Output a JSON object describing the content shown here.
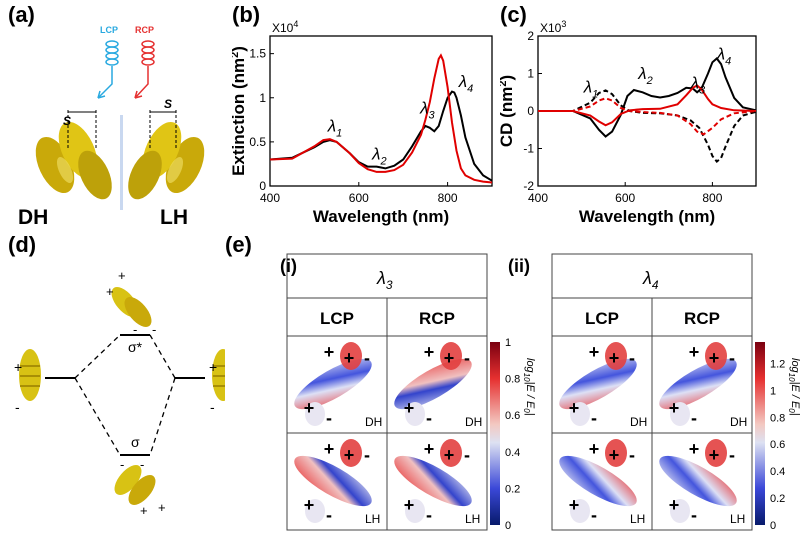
{
  "panel_labels": {
    "a": "(a)",
    "b": "(b)",
    "c": "(c)",
    "d": "(d)",
    "e": "(e)",
    "e_i": "(i)",
    "e_ii": "(ii)"
  },
  "panel_a": {
    "lcp": "LCP",
    "rcp": "RCP",
    "s": "S",
    "dh": "DH",
    "lh": "LH",
    "lcp_color": "#29a9e0",
    "rcp_color": "#e53030",
    "gold": "#d8c214"
  },
  "panel_b": {
    "multiplier": "X10",
    "multiplier_exp": "4"
  },
  "panel_c": {
    "multiplier": "X10",
    "multiplier_exp": "3"
  },
  "panel_d": {
    "sigma_star": "σ*",
    "sigma": "σ",
    "plus": "+",
    "minus": "-"
  },
  "panel_e": {
    "groups": [
      {
        "lambda": "λ",
        "sub": "3",
        "headers": [
          "LCP",
          "RCP"
        ]
      },
      {
        "lambda": "λ",
        "sub": "4",
        "headers": [
          "LCP",
          "RCP"
        ]
      }
    ],
    "dh": "DH",
    "lh": "LH",
    "colorbar_label_prefix": "log",
    "colorbar_label_sub": "10",
    "colorbar_label_rest": "|E / E",
    "colorbar_label_sub0": "0",
    "colorbar_label_end": "|",
    "cb1_ticks": [
      "1",
      "0.8",
      "0.6",
      "0.4",
      "0.2",
      "0"
    ],
    "cb2_ticks": [
      "1.2",
      "1",
      "0.8",
      "0.6",
      "0.4",
      "0.2",
      "0"
    ]
  },
  "chart_data": [
    {
      "type": "line",
      "xlabel": "Wavelength (nm)",
      "ylabel": "Extinction (nm²)",
      "ylabel_text": "Extinction (nm",
      "ylabel_sup": "2",
      "ylabel_end": ")",
      "xlim": [
        400,
        900
      ],
      "ylim": [
        0,
        1.7
      ],
      "xticks": [
        "400",
        "600",
        "800"
      ],
      "yticks": [
        "0",
        "0.5",
        "1",
        "1.5"
      ],
      "annotations": [
        {
          "text": "λ",
          "sub": "1",
          "x": 530,
          "y": 0.62
        },
        {
          "text": "λ",
          "sub": "2",
          "x": 630,
          "y": 0.3
        },
        {
          "text": "λ",
          "sub": "3",
          "x": 738,
          "y": 0.82
        },
        {
          "text": "λ",
          "sub": "4",
          "x": 825,
          "y": 1.12
        }
      ],
      "series": [
        {
          "color": "#000000",
          "x": [
            400,
            450,
            500,
            520,
            535,
            550,
            580,
            600,
            620,
            640,
            660,
            680,
            700,
            720,
            740,
            750,
            760,
            770,
            780,
            790,
            800,
            810,
            815,
            820,
            830,
            840,
            860,
            880,
            900
          ],
          "values": [
            0.3,
            0.32,
            0.44,
            0.5,
            0.52,
            0.5,
            0.37,
            0.27,
            0.22,
            0.22,
            0.2,
            0.23,
            0.3,
            0.45,
            0.62,
            0.68,
            0.66,
            0.62,
            0.68,
            0.85,
            1.0,
            1.07,
            1.06,
            1.0,
            0.8,
            0.55,
            0.25,
            0.12,
            0.06
          ]
        },
        {
          "color": "#e00000",
          "x": [
            400,
            450,
            500,
            520,
            535,
            550,
            580,
            600,
            620,
            640,
            660,
            680,
            700,
            720,
            740,
            750,
            760,
            770,
            780,
            785,
            790,
            800,
            810,
            820,
            830,
            840,
            860,
            880,
            900
          ],
          "values": [
            0.3,
            0.31,
            0.45,
            0.52,
            0.53,
            0.5,
            0.37,
            0.26,
            0.19,
            0.16,
            0.16,
            0.18,
            0.24,
            0.38,
            0.58,
            0.75,
            0.95,
            1.22,
            1.44,
            1.48,
            1.42,
            1.12,
            0.72,
            0.4,
            0.2,
            0.12,
            0.07,
            0.05,
            0.04
          ]
        }
      ]
    },
    {
      "type": "line",
      "xlabel": "Wavelength (nm)",
      "ylabel": "CD (nm²)",
      "ylabel_text": "CD (nm",
      "ylabel_sup": "2",
      "ylabel_end": ")",
      "xlim": [
        400,
        900
      ],
      "ylim": [
        -2,
        2
      ],
      "xticks": [
        "400",
        "600",
        "800"
      ],
      "yticks": [
        "-2",
        "-1",
        "0",
        "1",
        "2"
      ],
      "annotations": [
        {
          "text": "λ",
          "sub": "1",
          "x": 505,
          "y": 0.5
        },
        {
          "text": "λ",
          "sub": "2",
          "x": 630,
          "y": 0.85
        },
        {
          "text": "λ",
          "sub": "3",
          "x": 750,
          "y": 0.6
        },
        {
          "text": "λ",
          "sub": "4",
          "x": 810,
          "y": 1.38
        }
      ],
      "series": [
        {
          "color": "#000000",
          "dash": false,
          "x": [
            400,
            480,
            520,
            540,
            555,
            570,
            590,
            605,
            620,
            640,
            660,
            680,
            700,
            720,
            740,
            755,
            765,
            775,
            790,
            800,
            810,
            820,
            830,
            850,
            870,
            900
          ],
          "values": [
            0,
            0,
            -0.2,
            -0.5,
            -0.68,
            -0.55,
            -0.1,
            0.4,
            0.56,
            0.5,
            0.4,
            0.36,
            0.4,
            0.48,
            0.62,
            0.6,
            0.5,
            0.6,
            1.0,
            1.3,
            1.4,
            1.25,
            0.9,
            0.35,
            0.1,
            0.02
          ]
        },
        {
          "color": "#e00000",
          "dash": false,
          "x": [
            400,
            480,
            520,
            540,
            555,
            570,
            590,
            610,
            640,
            680,
            720,
            740,
            755,
            765,
            775,
            790,
            800,
            820,
            850,
            900
          ],
          "values": [
            0,
            0,
            -0.12,
            -0.28,
            -0.38,
            -0.3,
            -0.08,
            0.02,
            0.05,
            0.06,
            0.18,
            0.42,
            0.62,
            0.68,
            0.58,
            0.32,
            0.18,
            0.08,
            0.02,
            0
          ]
        },
        {
          "color": "#000000",
          "dash": true,
          "x": [
            400,
            480,
            520,
            540,
            555,
            570,
            590,
            610,
            640,
            680,
            720,
            750,
            770,
            790,
            800,
            810,
            820,
            830,
            850,
            870,
            900
          ],
          "values": [
            0,
            0,
            0.22,
            0.48,
            0.55,
            0.45,
            0.15,
            0,
            -0.05,
            -0.06,
            -0.12,
            -0.25,
            -0.45,
            -0.9,
            -1.2,
            -1.35,
            -1.25,
            -0.95,
            -0.4,
            -0.12,
            -0.02
          ]
        },
        {
          "color": "#e00000",
          "dash": true,
          "x": [
            400,
            480,
            520,
            540,
            555,
            570,
            590,
            610,
            640,
            680,
            720,
            750,
            765,
            780,
            800,
            820,
            850,
            900
          ],
          "values": [
            0,
            0,
            0.12,
            0.28,
            0.34,
            0.28,
            0.08,
            0,
            -0.03,
            -0.05,
            -0.12,
            -0.35,
            -0.55,
            -0.62,
            -0.45,
            -0.22,
            -0.06,
            0
          ]
        }
      ]
    }
  ]
}
